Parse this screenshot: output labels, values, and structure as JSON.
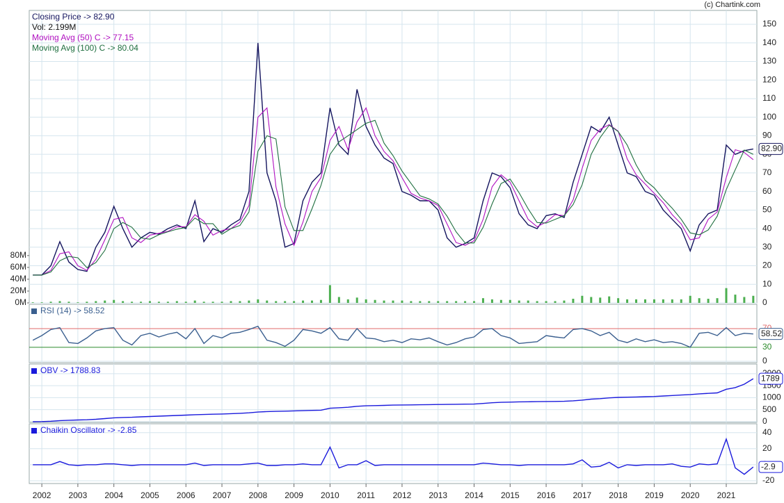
{
  "credit": "(c) Chartink.com",
  "chart_data": {
    "type": "stock",
    "x": [
      2001.75,
      2002,
      2002.25,
      2002.5,
      2002.75,
      2003,
      2003.25,
      2003.5,
      2003.75,
      2004,
      2004.25,
      2004.5,
      2004.75,
      2005,
      2005.25,
      2005.5,
      2005.75,
      2006,
      2006.25,
      2006.5,
      2006.75,
      2007,
      2007.25,
      2007.5,
      2007.75,
      2008,
      2008.25,
      2008.5,
      2008.75,
      2009,
      2009.25,
      2009.5,
      2009.75,
      2010,
      2010.25,
      2010.5,
      2010.75,
      2011,
      2011.25,
      2011.5,
      2011.75,
      2012,
      2012.25,
      2012.5,
      2012.75,
      2013,
      2013.25,
      2013.5,
      2013.75,
      2014,
      2014.25,
      2014.5,
      2014.75,
      2015,
      2015.25,
      2015.5,
      2015.75,
      2016,
      2016.25,
      2016.5,
      2016.75,
      2017,
      2017.25,
      2017.5,
      2017.75,
      2018,
      2018.25,
      2018.5,
      2018.75,
      2019,
      2019.25,
      2019.5,
      2019.75,
      2020,
      2020.25,
      2020.5,
      2020.75,
      2021,
      2021.25,
      2021.5,
      2021.75
    ],
    "xlim": [
      2001.65,
      2021.85
    ],
    "xticks": [
      2002,
      2003,
      2004,
      2005,
      2006,
      2007,
      2008,
      2009,
      2010,
      2011,
      2012,
      2013,
      2014,
      2015,
      2016,
      2017,
      2018,
      2019,
      2020,
      2021
    ],
    "grid": true,
    "panels": [
      {
        "ylim": [
          0,
          157.5
        ],
        "yticks": [
          0,
          10,
          20,
          30,
          40,
          50,
          60,
          70,
          80,
          90,
          100,
          110,
          120,
          130,
          140,
          150
        ],
        "y2lim": [
          0,
          494
        ],
        "y2ticks": [
          {
            "value": 0,
            "label": "0M"
          },
          {
            "value": 20,
            "label": "20M"
          },
          {
            "value": 40,
            "label": "40M"
          },
          {
            "value": 60,
            "label": "60M"
          },
          {
            "value": 80,
            "label": "80M"
          }
        ],
        "last_label": "82.90",
        "legend_marker": false,
        "series": [
          {
            "name": "Closing Price -> 82.90",
            "type": "line",
            "color": "#14145e",
            "values": [
              15,
              15,
              20,
              33,
              22,
              18,
              17,
              30,
              38,
              52,
              40,
              30,
              35,
              38,
              37,
              40,
              42,
              40,
              55,
              33,
              40,
              38,
              42,
              45,
              60,
              140,
              70,
              55,
              30,
              32,
              55,
              65,
              70,
              105,
              85,
              80,
              115,
              95,
              85,
              78,
              75,
              60,
              58,
              55,
              55,
              50,
              35,
              30,
              32,
              35,
              55,
              70,
              68,
              62,
              48,
              42,
              40,
              47,
              48,
              46,
              65,
              80,
              95,
              92,
              100,
              85,
              70,
              68,
              60,
              58,
              50,
              45,
              40,
              28,
              42,
              48,
              50,
              85,
              80,
              82,
              82.9
            ]
          },
          {
            "name": "Vol: 2.199M",
            "type": "bar",
            "axis": "y2",
            "color": "#4caf50",
            "label_color": "#111111",
            "values": [
              1,
              1,
              2,
              3,
              2,
              1,
              2,
              3,
              4,
              5,
              3,
              2,
              2,
              3,
              2,
              2,
              3,
              2,
              4,
              2,
              2,
              2,
              3,
              3,
              4,
              6,
              4,
              3,
              3,
              3,
              4,
              4,
              5,
              30,
              10,
              6,
              9,
              6,
              5,
              4,
              4,
              4,
              3,
              3,
              3,
              3,
              3,
              3,
              3,
              3,
              8,
              6,
              5,
              5,
              4,
              4,
              3,
              3,
              3,
              4,
              7,
              12,
              10,
              9,
              11,
              8,
              6,
              6,
              6,
              6,
              6,
              6,
              6,
              12,
              8,
              7,
              8,
              25,
              14,
              10,
              12
            ]
          },
          {
            "name": "Moving Avg (50) C -> 77.15",
            "type": "line",
            "color": "#b010c0",
            "values": [
              15,
              15,
              17.5,
              26.5,
              27.5,
              20,
              17.5,
              23.5,
              34,
              45,
              46,
              35,
              32.5,
              36.5,
              37.5,
              38.5,
              41,
              41,
              47.5,
              44,
              36.5,
              39,
              40,
              43.5,
              52.5,
              100,
              105,
              62.5,
              42.5,
              31,
              43.5,
              60,
              67.5,
              87.5,
              95,
              82.5,
              97.5,
              105,
              90,
              81.5,
              76.5,
              67.5,
              59,
              56.5,
              55,
              52.5,
              42.5,
              32.5,
              31,
              33.5,
              45,
              62.5,
              69,
              65,
              55,
              45,
              41,
              43.5,
              47.5,
              47,
              55.5,
              72.5,
              87.5,
              93.5,
              96,
              92.5,
              77.5,
              69,
              64,
              59,
              54,
              47.5,
              42.5,
              34,
              35,
              45,
              49,
              67.5,
              82.5,
              81,
              77.15
            ]
          },
          {
            "name": "Moving Avg (100) C -> 80.04",
            "type": "line",
            "color": "#1e6e3e",
            "values": [
              15,
              15,
              16.7,
              22.7,
              25,
              24.3,
              19,
              21.7,
              28.3,
              40,
              43.3,
              40.7,
              35,
              34.3,
              36.7,
              38.3,
              39.7,
              40.7,
              45.7,
              42.7,
              42.7,
              37,
              40,
              41.7,
              49,
              81.7,
              90,
              88.3,
              51.7,
              39,
              39,
              50.7,
              63.3,
              80,
              86.7,
              90,
              93.3,
              96.7,
              98.3,
              86,
              79.3,
              71,
              64.3,
              57.7,
              56,
              53.3,
              46.7,
              38.3,
              32.3,
              32.3,
              40.7,
              53.3,
              64.3,
              66.7,
              59.3,
              50.7,
              43.3,
              43,
              45,
              47,
              53,
              63.7,
              80,
              89,
              95.7,
              92.3,
              85,
              74.3,
              66,
              62,
              56,
              51,
              45,
              37.7,
              36.7,
              39.3,
              46.7,
              61,
              71.7,
              82.3,
              80.04
            ]
          }
        ]
      },
      {
        "ylim": [
          -3,
          122
        ],
        "yticks": [
          0
        ],
        "last_label": "58.52",
        "legend_marker": true,
        "levels": [
          {
            "value": 70,
            "color": "#e06a6a"
          },
          {
            "value": 30,
            "color": "#2a8a2a"
          }
        ],
        "series": [
          {
            "name": "RSI (14) -> 58.52",
            "type": "line",
            "color": "#3a5f8f",
            "values": [
              45,
              55,
              68,
              72,
              40,
              38,
              50,
              65,
              70,
              72,
              45,
              35,
              55,
              60,
              52,
              58,
              62,
              48,
              70,
              38,
              55,
              50,
              60,
              62,
              68,
              75,
              45,
              40,
              32,
              45,
              68,
              65,
              60,
              72,
              48,
              45,
              70,
              50,
              48,
              42,
              45,
              40,
              48,
              46,
              50,
              42,
              35,
              40,
              48,
              52,
              68,
              70,
              55,
              50,
              38,
              40,
              42,
              55,
              52,
              50,
              68,
              70,
              65,
              55,
              62,
              45,
              40,
              48,
              42,
              46,
              40,
              42,
              38,
              30,
              60,
              62,
              55,
              72,
              55,
              60,
              58.52
            ]
          }
        ]
      },
      {
        "ylim": [
          -30,
          2400
        ],
        "yticks": [
          0,
          500,
          1000,
          1500,
          2000
        ],
        "last_label": "1789",
        "legend_marker": true,
        "series": [
          {
            "name": "OBV -> 1788.83",
            "type": "line",
            "color": "#1a1adc",
            "values": [
              0,
              5,
              20,
              45,
              60,
              70,
              80,
              100,
              130,
              160,
              175,
              185,
              200,
              215,
              230,
              245,
              260,
              275,
              290,
              300,
              310,
              320,
              335,
              350,
              370,
              400,
              420,
              430,
              440,
              450,
              460,
              470,
              480,
              560,
              580,
              600,
              640,
              660,
              670,
              680,
              690,
              695,
              700,
              705,
              710,
              715,
              720,
              725,
              730,
              735,
              760,
              790,
              805,
              815,
              825,
              830,
              835,
              840,
              845,
              850,
              870,
              900,
              940,
              960,
              990,
              1010,
              1020,
              1030,
              1040,
              1050,
              1070,
              1090,
              1110,
              1130,
              1160,
              1180,
              1200,
              1350,
              1420,
              1560,
              1788.83
            ]
          }
        ]
      },
      {
        "ylim": [
          -23.5,
          51
        ],
        "yticks": [
          -20,
          0,
          20,
          40
        ],
        "last_label": "-2.9",
        "legend_marker": true,
        "series": [
          {
            "name": "Chaikin Oscillator -> -2.85",
            "type": "line",
            "color": "#1a1adc",
            "values": [
              0,
              0,
              0,
              4,
              0,
              -1,
              0,
              0,
              1,
              1,
              0,
              -1,
              0,
              0,
              0,
              0,
              0,
              0,
              2,
              -1,
              0,
              0,
              0,
              0,
              1,
              2,
              -1,
              -1,
              0,
              0,
              1,
              0,
              0,
              22,
              -4,
              0,
              0,
              5,
              -1,
              0,
              0,
              0,
              0,
              0,
              0,
              0,
              0,
              0,
              0,
              0,
              2,
              1,
              0,
              0,
              -1,
              0,
              0,
              0,
              0,
              0,
              1,
              6,
              -3,
              -2,
              3,
              -4,
              0,
              -1,
              0,
              0,
              0,
              1,
              -2,
              -3,
              1,
              0,
              1,
              32,
              -4,
              -12,
              -2.85
            ]
          }
        ]
      }
    ]
  }
}
